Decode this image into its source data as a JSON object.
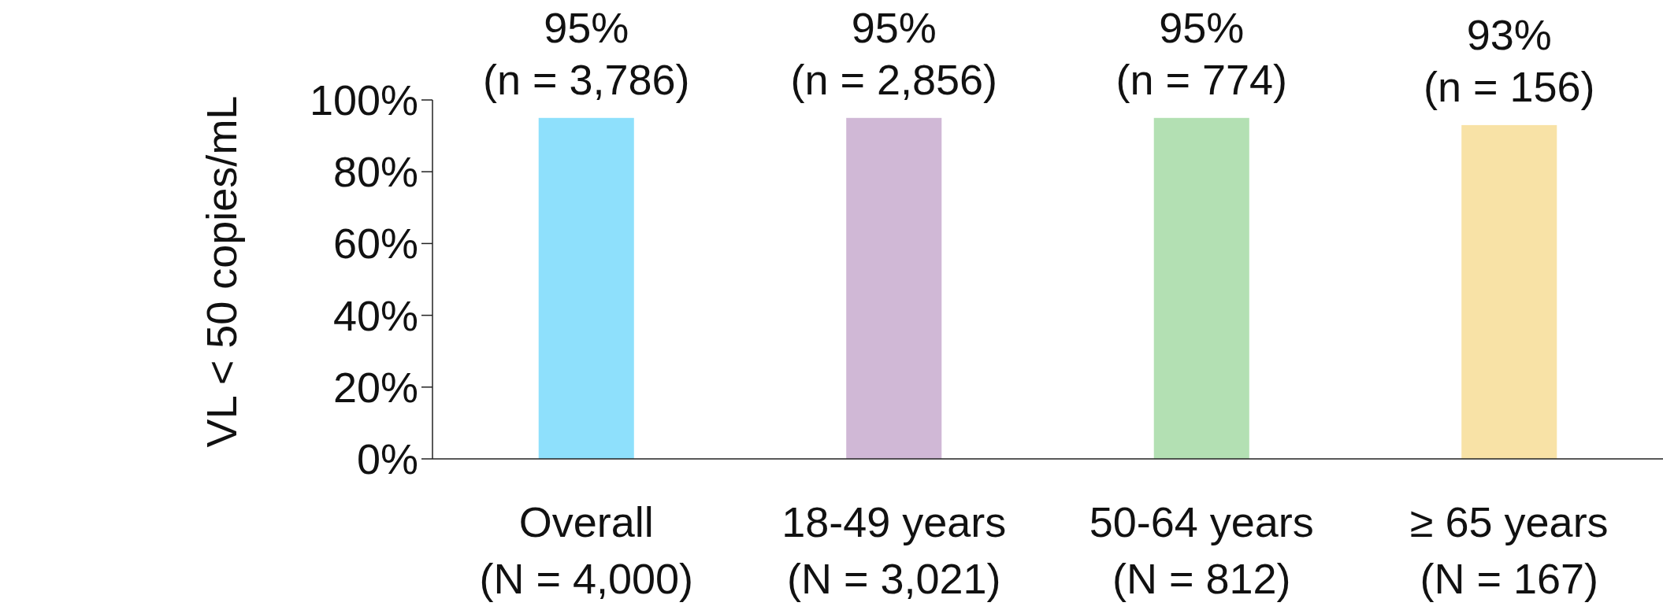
{
  "chart_data": {
    "type": "bar",
    "ylabel": "VL < 50 copies/mL",
    "categories": [
      "Overall\n(N = 4,000)",
      "18-49 years\n(N = 3,021)",
      "50-64 years\n(N = 812)",
      "≥ 65 years\n(N = 167)"
    ],
    "values": [
      95,
      95,
      95,
      93
    ],
    "colors": [
      "#8ee0fc",
      "#d0b8d6",
      "#b3e0b3",
      "#f8e2a6"
    ],
    "value_labels": [
      "95%\n(n = 3,786)",
      "95%\n(n = 2,856)",
      "95%\n(n = 774)",
      "93%\n(n = 156)"
    ],
    "ylim": [
      0,
      100
    ],
    "yticks": [
      {
        "value": 0,
        "label": "0%"
      },
      {
        "value": 20,
        "label": "20%"
      },
      {
        "value": 40,
        "label": "40%"
      },
      {
        "value": 60,
        "label": "60%"
      },
      {
        "value": 80,
        "label": "80%"
      },
      {
        "value": 100,
        "label": "100%"
      }
    ],
    "grid": false
  }
}
